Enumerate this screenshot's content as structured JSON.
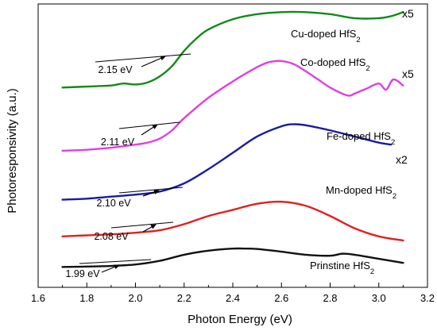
{
  "chart_data": {
    "type": "line",
    "xlabel": "Photon Energy (eV)",
    "ylabel": "Photoresponsivity (a.u.)",
    "xlim": [
      1.6,
      3.2
    ],
    "x_ticks": [
      "1.6",
      "1.8",
      "2.0",
      "2.2",
      "2.4",
      "2.6",
      "2.8",
      "3.0",
      "3.2"
    ],
    "y_ticks_labeled": false,
    "grid": false,
    "legend": "none",
    "series": [
      {
        "name": "Cu-doped HfS₂",
        "multiplier": "x5",
        "band_gap_label": "2.15 eV",
        "color": "#118a18",
        "x": [
          1.7,
          1.8,
          1.9,
          1.95,
          2.0,
          2.05,
          2.1,
          2.15,
          2.2,
          2.25,
          2.3,
          2.4,
          2.5,
          2.6,
          2.7,
          2.8,
          2.9,
          3.0,
          3.05,
          3.1
        ],
        "y": [
          0.93,
          0.935,
          0.94,
          0.95,
          0.945,
          0.955,
          0.985,
          1.035,
          1.11,
          1.17,
          1.215,
          1.265,
          1.29,
          1.3,
          1.3,
          1.29,
          1.27,
          1.27,
          1.28,
          1.3
        ]
      },
      {
        "name": "Co-doped HfS₂",
        "multiplier": "x5",
        "band_gap_label": "2.11 eV",
        "color": "#e23ee2",
        "x": [
          1.7,
          1.8,
          1.9,
          2.0,
          2.05,
          2.1,
          2.15,
          2.2,
          2.3,
          2.4,
          2.5,
          2.55,
          2.6,
          2.65,
          2.7,
          2.75,
          2.8,
          2.85,
          2.88,
          2.9,
          2.95,
          3.0,
          3.03,
          3.06,
          3.1
        ],
        "y": [
          0.62,
          0.625,
          0.635,
          0.65,
          0.66,
          0.68,
          0.72,
          0.78,
          0.88,
          0.96,
          1.03,
          1.055,
          1.06,
          1.045,
          1.01,
          0.97,
          0.93,
          0.9,
          0.89,
          0.9,
          0.925,
          0.95,
          0.92,
          0.97,
          0.94
        ]
      },
      {
        "name": "Fe-doped HfS₂",
        "multiplier": "x2",
        "band_gap_label": "2.10 eV",
        "color": "#1a1aa6",
        "x": [
          1.7,
          1.8,
          1.9,
          2.0,
          2.1,
          2.2,
          2.3,
          2.4,
          2.5,
          2.6,
          2.65,
          2.7,
          2.8,
          2.9,
          3.0,
          3.05
        ],
        "y": [
          0.38,
          0.385,
          0.395,
          0.405,
          0.42,
          0.46,
          0.53,
          0.61,
          0.69,
          0.74,
          0.75,
          0.745,
          0.72,
          0.69,
          0.66,
          0.65
        ]
      },
      {
        "name": "Mn-doped HfS₂",
        "band_gap_label": "2.08 eV",
        "color": "#e02020",
        "x": [
          1.7,
          1.8,
          1.9,
          2.0,
          2.1,
          2.2,
          2.3,
          2.4,
          2.5,
          2.6,
          2.7,
          2.8,
          2.9,
          3.0,
          3.1
        ],
        "y": [
          0.2,
          0.205,
          0.21,
          0.218,
          0.23,
          0.26,
          0.3,
          0.33,
          0.36,
          0.37,
          0.35,
          0.3,
          0.24,
          0.2,
          0.18
        ]
      },
      {
        "name": "Prinstine HfS₂",
        "band_gap_label": "1.99 eV",
        "color": "#111111",
        "x": [
          1.7,
          1.8,
          1.9,
          2.0,
          2.1,
          2.2,
          2.3,
          2.4,
          2.45,
          2.5,
          2.6,
          2.7,
          2.8,
          2.85,
          2.9,
          3.0,
          3.1
        ],
        "y": [
          0.05,
          0.052,
          0.055,
          0.062,
          0.08,
          0.11,
          0.13,
          0.14,
          0.14,
          0.138,
          0.125,
          0.11,
          0.105,
          0.115,
          0.11,
          0.09,
          0.07
        ]
      }
    ]
  }
}
